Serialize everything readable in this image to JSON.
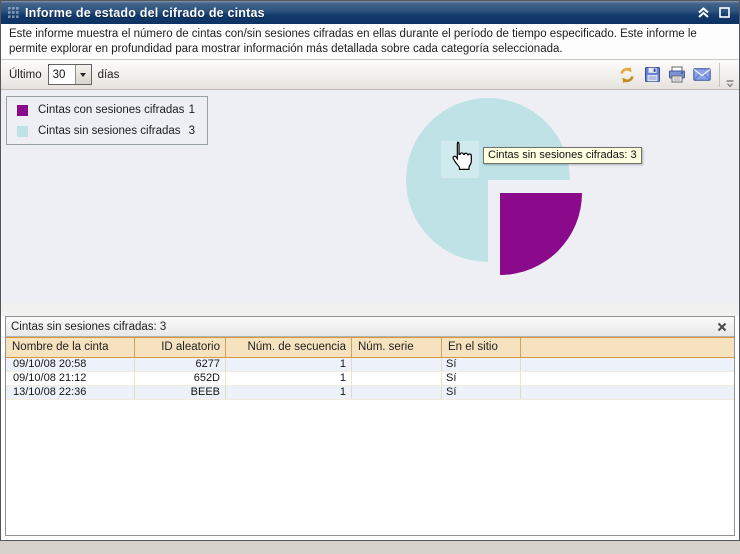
{
  "window": {
    "title": "Informe de estado del cifrado de cintas",
    "icons": [
      "grip-icon",
      "collapse-icon",
      "maximize-icon"
    ]
  },
  "description": "Este informe muestra el número de cintas con/sin sesiones cifradas en ellas durante el período de tiempo especificado. Este informe le permite explorar en profundidad para mostrar información más detallada sobre cada categoría seleccionada.",
  "toolbar": {
    "last_label": "Último",
    "days_value": "30",
    "days_label": "días",
    "icons": [
      "refresh-icon",
      "save-icon",
      "print-icon",
      "email-icon",
      "toolbar-options-icon"
    ]
  },
  "legend": {
    "items": [
      {
        "label": "Cintas con sesiones cifradas",
        "value": "1",
        "color": "#8B0A8B"
      },
      {
        "label": "Cintas sin sesiones cifradas",
        "value": "3",
        "color": "#BFE2E6"
      }
    ]
  },
  "chart_data": {
    "type": "pie",
    "title": "",
    "slices": [
      {
        "label": "Cintas con sesiones cifradas",
        "value": 1,
        "color": "#8B0A8B",
        "exploded": true
      },
      {
        "label": "Cintas sin sesiones cifradas",
        "value": 3,
        "color": "#BFE2E6",
        "exploded": false
      }
    ],
    "total": 4,
    "legend_position": "top-left",
    "background": "#EDEFF5"
  },
  "tooltip": {
    "text": "Cintas sin sesiones cifradas: 3"
  },
  "panel": {
    "title": "Cintas sin sesiones cifradas: 3",
    "columns": [
      "Nombre de la cinta",
      "ID aleatorio",
      "Núm. de secuencia",
      "Núm. serie",
      "En el sitio",
      ""
    ],
    "rows": [
      [
        "09/10/08 20:58",
        "6277",
        "1",
        "",
        "Sí",
        ""
      ],
      [
        "09/10/08 21:12",
        "652D",
        "1",
        "",
        "Sí",
        ""
      ],
      [
        "13/10/08 22:36",
        "BEEB",
        "1",
        "",
        "Sí",
        ""
      ]
    ],
    "stripe_color": "#EDF1F9",
    "header_bg": "#F6E2BE"
  },
  "colors": {
    "titlebar": "#123A6B",
    "chart_bg": "#EDEFF5",
    "tooltip_bg": "#FFFFE1"
  }
}
